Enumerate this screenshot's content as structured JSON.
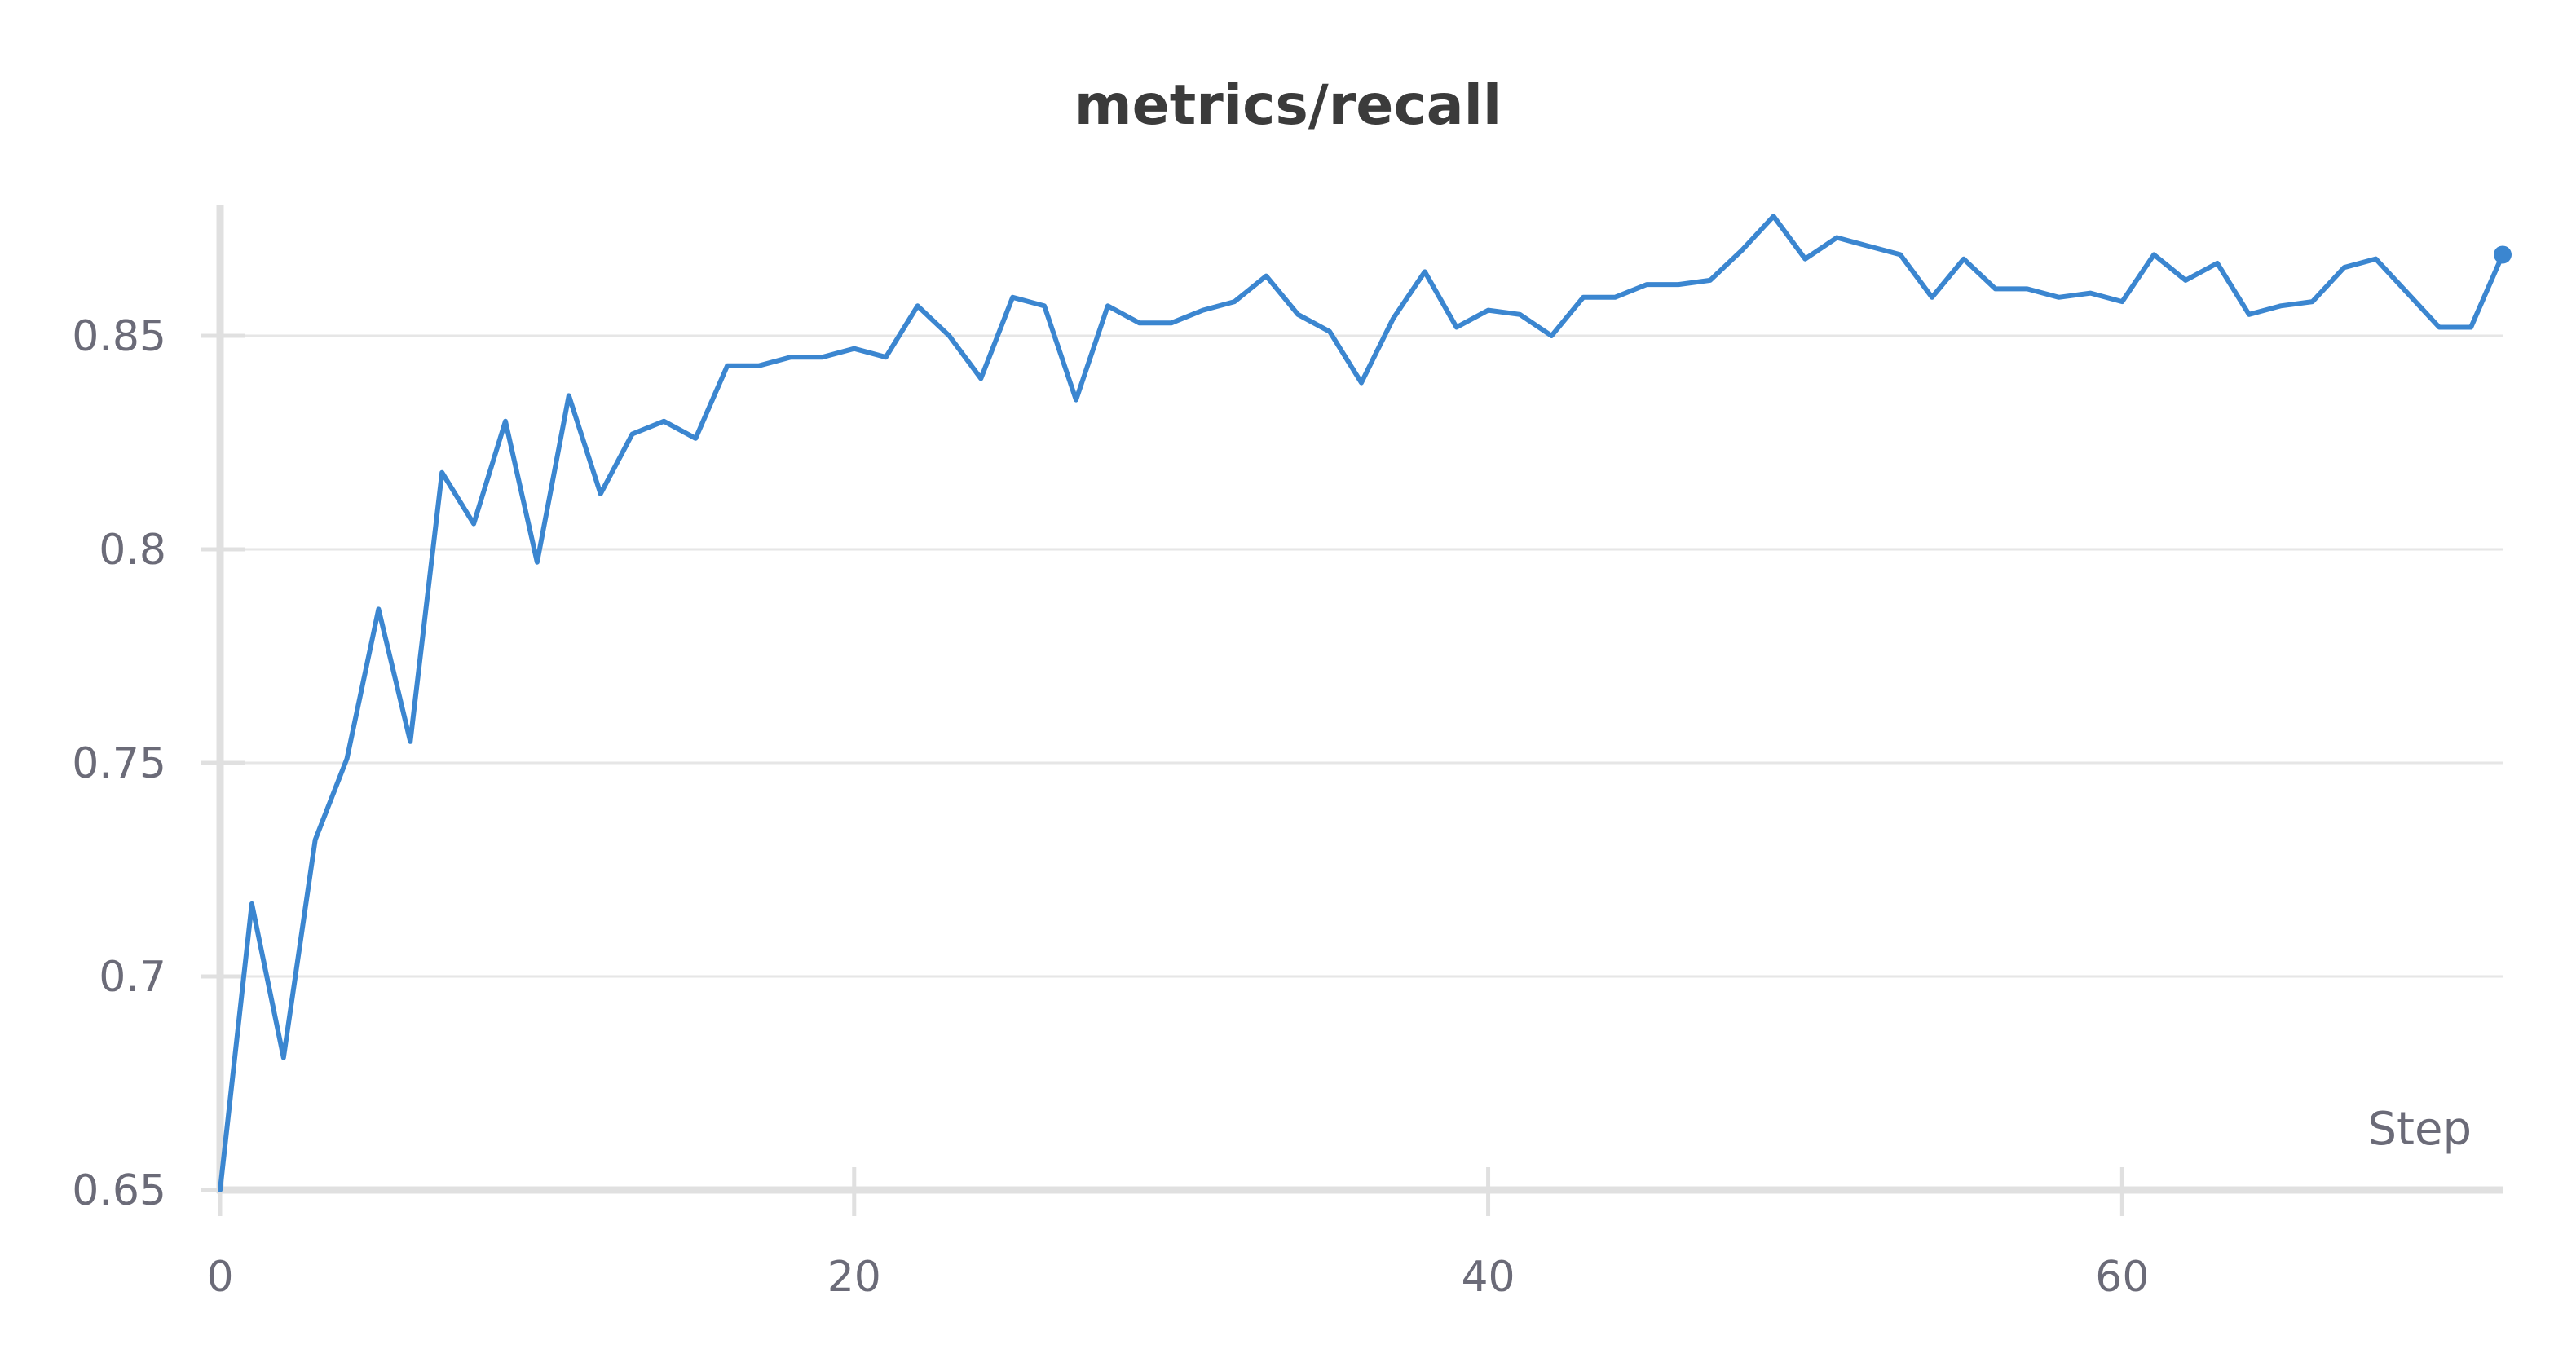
{
  "chart_data": {
    "type": "line",
    "title": "metrics/recall",
    "xlabel": "Step",
    "ylabel": "",
    "xlim": [
      0,
      72
    ],
    "ylim": [
      0.65,
      0.88
    ],
    "x_ticks": [
      0,
      20,
      40,
      60
    ],
    "x_tick_labels": [
      "0",
      "20",
      "40",
      "60"
    ],
    "y_ticks": [
      0.65,
      0.7,
      0.75,
      0.8,
      0.85
    ],
    "y_tick_labels": [
      "0.65",
      "0.7",
      "0.75",
      "0.8",
      "0.85"
    ],
    "grid": true,
    "legend": "none",
    "series": [
      {
        "color": "#3b86d0",
        "x": [
          0,
          1,
          2,
          3,
          4,
          5,
          6,
          7,
          8,
          9,
          10,
          11,
          12,
          13,
          14,
          15,
          16,
          17,
          18,
          19,
          20,
          21,
          22,
          23,
          24,
          25,
          26,
          27,
          28,
          29,
          30,
          31,
          32,
          33,
          34,
          35,
          36,
          37,
          38,
          39,
          40,
          41,
          42,
          43,
          44,
          45,
          46,
          47,
          48,
          49,
          50,
          51,
          52,
          53,
          54,
          55,
          56,
          57,
          58,
          59,
          60,
          61,
          62,
          63,
          64,
          65,
          66,
          67,
          68,
          69,
          70,
          71,
          72
        ],
        "values": [
          0.65,
          0.717,
          0.681,
          0.732,
          0.751,
          0.786,
          0.755,
          0.818,
          0.806,
          0.83,
          0.797,
          0.836,
          0.813,
          0.827,
          0.83,
          0.826,
          0.843,
          0.843,
          0.845,
          0.845,
          0.847,
          0.845,
          0.857,
          0.85,
          0.84,
          0.859,
          0.857,
          0.835,
          0.857,
          0.853,
          0.853,
          0.856,
          0.858,
          0.864,
          0.855,
          0.851,
          0.839,
          0.854,
          0.865,
          0.852,
          0.856,
          0.855,
          0.85,
          0.859,
          0.859,
          0.862,
          0.862,
          0.863,
          0.87,
          0.878,
          0.868,
          0.873,
          0.871,
          0.869,
          0.859,
          0.868,
          0.861,
          0.861,
          0.859,
          0.86,
          0.858,
          0.869,
          0.863,
          0.867,
          0.855,
          0.857,
          0.858,
          0.866,
          0.868,
          0.86,
          0.852,
          0.852,
          0.869
        ]
      }
    ]
  }
}
